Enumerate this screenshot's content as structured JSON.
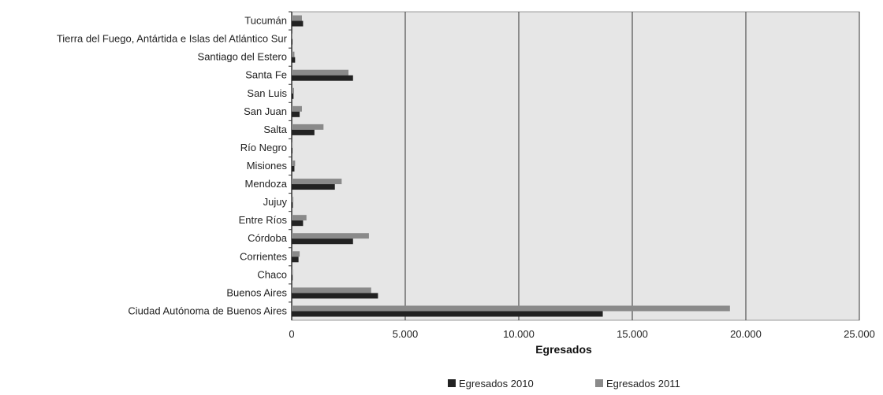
{
  "chart_data": {
    "type": "bar",
    "orientation": "horizontal",
    "xlabel": "Egresados",
    "xlim": [
      0,
      25000
    ],
    "x_ticks": [
      0,
      5000,
      10000,
      15000,
      20000,
      25000
    ],
    "x_tick_labels": [
      "0",
      "5.000",
      "10.000",
      "15.000",
      "20.000",
      "25.000"
    ],
    "categories": [
      "Tucumán",
      "Tierra del Fuego, Antártida e Islas del Atlántico Sur",
      "Santiago del Estero",
      "Santa Fe",
      "San Luis",
      "San Juan",
      "Salta",
      "Río Negro",
      "Misiones",
      "Mendoza",
      "Jujuy",
      "Entre Ríos",
      "Córdoba",
      "Corrientes",
      "Chaco",
      "Buenos Aires",
      "Ciudad Autónoma de Buenos Aires"
    ],
    "series": [
      {
        "name": "Egresados 2010",
        "color": "#222222",
        "values": [
          500,
          20,
          150,
          2700,
          80,
          350,
          1000,
          30,
          120,
          1900,
          50,
          500,
          2700,
          300,
          40,
          3800,
          13700
        ]
      },
      {
        "name": "Egresados 2011",
        "color": "#8a8a8a",
        "values": [
          450,
          30,
          120,
          2500,
          100,
          450,
          1400,
          40,
          150,
          2200,
          70,
          650,
          3400,
          350,
          50,
          3500,
          19300
        ]
      }
    ],
    "grid": true,
    "legend_position": "bottom"
  }
}
